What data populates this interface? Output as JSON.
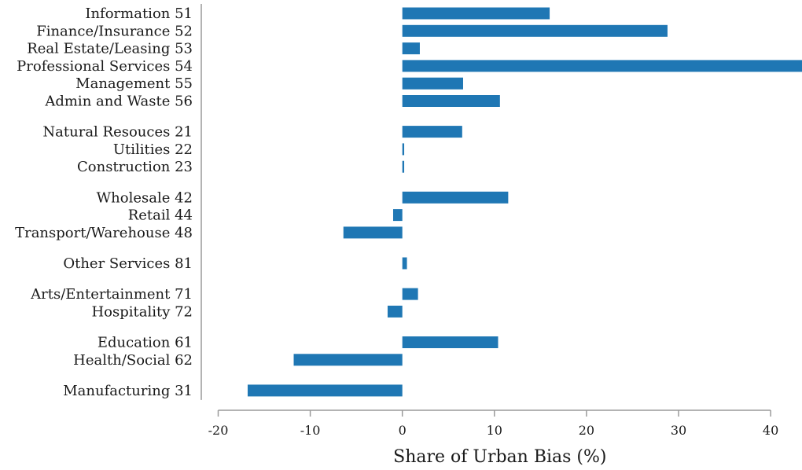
{
  "chart_data": {
    "type": "bar",
    "orientation": "horizontal",
    "title": "",
    "xlabel": "Share of Urban Bias (%)",
    "ylabel": "",
    "xlim": [
      -20,
      43.5
    ],
    "xticks": [
      -20,
      -10,
      0,
      10,
      20,
      30,
      40
    ],
    "xtick_labels": [
      "-20",
      "-10",
      "0",
      "10",
      "20",
      "30",
      "40"
    ],
    "grid": false,
    "legend": "none",
    "bar_color": "#1f77b4",
    "groups": [
      {
        "categories": [
          {
            "label": "Information 51",
            "value": 16.0
          },
          {
            "label": "Finance/Insurance 52",
            "value": 28.8
          },
          {
            "label": "Real Estate/Leasing 53",
            "value": 1.9
          },
          {
            "label": "Professional Services 54",
            "value": 43.5
          },
          {
            "label": "Management 55",
            "value": 6.6
          },
          {
            "label": "Admin and Waste 56",
            "value": 10.6
          }
        ]
      },
      {
        "categories": [
          {
            "label": "Natural Resouces 21",
            "value": 6.5
          },
          {
            "label": "Utilities 22",
            "value": 0.2
          },
          {
            "label": "Construction 23",
            "value": 0.2
          }
        ]
      },
      {
        "categories": [
          {
            "label": "Wholesale 42",
            "value": 11.5
          },
          {
            "label": "Retail 44",
            "value": -1.0
          },
          {
            "label": "Transport/Warehouse 48",
            "value": -6.4
          }
        ]
      },
      {
        "categories": [
          {
            "label": "Other Services 81",
            "value": 0.5
          }
        ]
      },
      {
        "categories": [
          {
            "label": "Arts/Entertainment 71",
            "value": 1.7
          },
          {
            "label": "Hospitality 72",
            "value": -1.6
          }
        ]
      },
      {
        "categories": [
          {
            "label": "Education 61",
            "value": 10.4
          },
          {
            "label": "Health/Social 62",
            "value": -11.8
          }
        ]
      },
      {
        "categories": [
          {
            "label": "Manufacturing 31",
            "value": -16.8
          }
        ]
      }
    ]
  }
}
